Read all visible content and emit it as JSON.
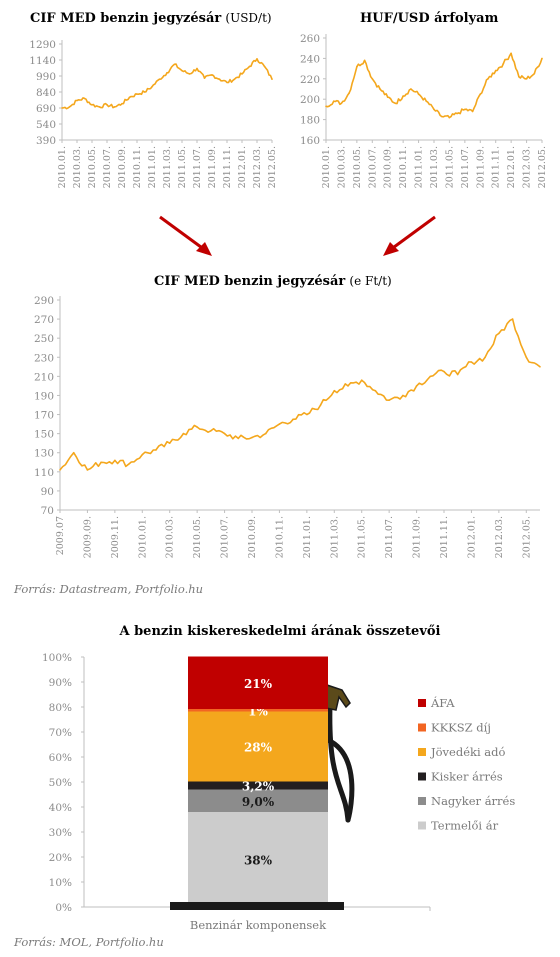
{
  "chart_top_left": {
    "title_bold": "CIF MED benzin jegyzésár",
    "title_unit": "(USD/t)"
  },
  "chart_top_right": {
    "title_bold": "HUF/USD árfolyam"
  },
  "chart_mid": {
    "title_bold": "CIF MED  benzin jegyzésár",
    "title_unit": "(e Ft/t)",
    "source": "Forrás: Datastream, Portfolio.hu"
  },
  "chart_bottom": {
    "title": "A benzin kiskereskedelmi árának összetevői",
    "source": "Forrás: MOL, Portfolio.hu"
  },
  "colors": {
    "line": "#f4a71d",
    "afa": "#c00000",
    "kkksz": "#f26522",
    "jovedeki": "#f4a71d",
    "kisker": "#231f20",
    "nagyker": "#8c8c8c",
    "termeloi": "#cccccc",
    "pump": "#1a1a1a",
    "nozzle": "#5b4a1a"
  },
  "icons": [
    "fuel-pump-hose-icon",
    "arrow-down-right-icon",
    "arrow-down-left-icon"
  ],
  "chart_data": [
    {
      "type": "line",
      "title": "CIF MED benzin jegyzésár (USD/t)",
      "ylim": [
        390,
        1290
      ],
      "yticks": [
        "1290",
        "1140",
        "990",
        "840",
        "690",
        "540",
        "390"
      ],
      "x_tick_labels": [
        "2010.01.",
        "2010.03.",
        "2010.05.",
        "2010.07.",
        "2010.09.",
        "2010.11.",
        "2011.01.",
        "2011.03.",
        "2011.05.",
        "2011.07.",
        "2011.09.",
        "2011.11.",
        "2012.01.",
        "2012.03.",
        "2012.05."
      ],
      "x": [
        "2010.01",
        "2010.02",
        "2010.03",
        "2010.04",
        "2010.05",
        "2010.06",
        "2010.07",
        "2010.08",
        "2010.09",
        "2010.10",
        "2010.11",
        "2010.12",
        "2011.01",
        "2011.02",
        "2011.03",
        "2011.04",
        "2011.05",
        "2011.06",
        "2011.07",
        "2011.08",
        "2011.09",
        "2011.10",
        "2011.11",
        "2011.12",
        "2012.01",
        "2012.02",
        "2012.03",
        "2012.04",
        "2012.05"
      ],
      "series": [
        {
          "values": [
            690,
            700,
            760,
            780,
            720,
            700,
            720,
            700,
            730,
            790,
            820,
            840,
            890,
            960,
            1020,
            1100,
            1040,
            1010,
            1060,
            970,
            1000,
            960,
            930,
            960,
            1010,
            1080,
            1150,
            1080,
            960
          ]
        }
      ],
      "grid": false
    },
    {
      "type": "line",
      "title": "HUF/USD árfolyam",
      "ylim": [
        160,
        260
      ],
      "yticks": [
        "260",
        "240",
        "220",
        "200",
        "180",
        "160"
      ],
      "x_tick_labels": [
        "2010.01.",
        "2010.03.",
        "2010.05.",
        "2010.07.",
        "2010.09.",
        "2010.11.",
        "2011.01.",
        "2011.03.",
        "2011.05.",
        "2011.07.",
        "2011.09.",
        "2011.11.",
        "2012.01.",
        "2012.03.",
        "2012.05."
      ],
      "x": [
        "2010.01",
        "2010.02",
        "2010.03",
        "2010.04",
        "2010.05",
        "2010.06",
        "2010.07",
        "2010.08",
        "2010.09",
        "2010.10",
        "2010.11",
        "2010.12",
        "2011.01",
        "2011.02",
        "2011.03",
        "2011.04",
        "2011.05",
        "2011.06",
        "2011.07",
        "2011.08",
        "2011.09",
        "2011.10",
        "2011.11",
        "2011.12",
        "2012.01",
        "2012.02",
        "2012.03",
        "2012.04",
        "2012.05"
      ],
      "series": [
        {
          "values": [
            193,
            198,
            196,
            206,
            232,
            238,
            220,
            210,
            202,
            196,
            203,
            210,
            205,
            198,
            190,
            183,
            182,
            186,
            190,
            188,
            205,
            220,
            228,
            235,
            245,
            222,
            220,
            225,
            240
          ]
        }
      ],
      "grid": false
    },
    {
      "type": "line",
      "title": "CIF MED  benzin jegyzésár (e Ft/t)",
      "ylim": [
        70,
        290
      ],
      "yticks": [
        "290",
        "270",
        "250",
        "230",
        "210",
        "190",
        "170",
        "150",
        "130",
        "110",
        "90",
        "70"
      ],
      "x_tick_labels": [
        "2009.07",
        "2009.09.",
        "2009.11.",
        "2010.01.",
        "2010.03.",
        "2010.05.",
        "2010.07.",
        "2010.09.",
        "2010.11.",
        "2011.01.",
        "2011.03.",
        "2011.05.",
        "2011.07.",
        "2011.09.",
        "2011.11.",
        "2012.01.",
        "2012.03.",
        "2012.05."
      ],
      "x": [
        "2009.07",
        "2009.08",
        "2009.09",
        "2009.10",
        "2009.11",
        "2009.12",
        "2010.01",
        "2010.02",
        "2010.03",
        "2010.04",
        "2010.05",
        "2010.06",
        "2010.07",
        "2010.08",
        "2010.09",
        "2010.10",
        "2010.11",
        "2010.12",
        "2011.01",
        "2011.02",
        "2011.03",
        "2011.04",
        "2011.05",
        "2011.06",
        "2011.07",
        "2011.08",
        "2011.09",
        "2011.10",
        "2011.11",
        "2011.12",
        "2012.01",
        "2012.02",
        "2012.03",
        "2012.04",
        "2012.05",
        "2012.06"
      ],
      "series": [
        {
          "values": [
            112,
            130,
            112,
            120,
            122,
            118,
            128,
            133,
            140,
            150,
            157,
            153,
            150,
            145,
            146,
            150,
            160,
            165,
            170,
            180,
            195,
            200,
            206,
            195,
            185,
            190,
            200,
            210,
            215,
            212,
            225,
            230,
            255,
            270,
            230,
            220
          ]
        }
      ],
      "grid": false
    },
    {
      "type": "bar",
      "title": "A benzin kiskereskedelmi árának összetevői",
      "categories": [
        "Benzinár komponensek"
      ],
      "ylim": [
        0,
        100
      ],
      "yticks": [
        "100%",
        "90%",
        "80%",
        "70%",
        "60%",
        "50%",
        "40%",
        "30%",
        "20%",
        "10%",
        "0%"
      ],
      "stacked": true,
      "series": [
        {
          "name": "Termelői ár",
          "values": [
            38
          ],
          "label": "38%"
        },
        {
          "name": "Nagyker árrés",
          "values": [
            9.0
          ],
          "label": "9,0%"
        },
        {
          "name": "Kisker árrés",
          "values": [
            3.2
          ],
          "label": "3,2%"
        },
        {
          "name": "Jövedéki adó",
          "values": [
            28
          ],
          "label": "28%"
        },
        {
          "name": "KKKSZ díj",
          "values": [
            1
          ],
          "label": "1%"
        },
        {
          "name": "ÁFA",
          "values": [
            21
          ],
          "label": "21%"
        }
      ],
      "legend": [
        "ÁFA",
        "KKKSZ díj",
        "Jövedéki adó",
        "Kisker árrés",
        "Nagyker árrés",
        "Termelői ár"
      ],
      "legend_position": "right"
    }
  ]
}
